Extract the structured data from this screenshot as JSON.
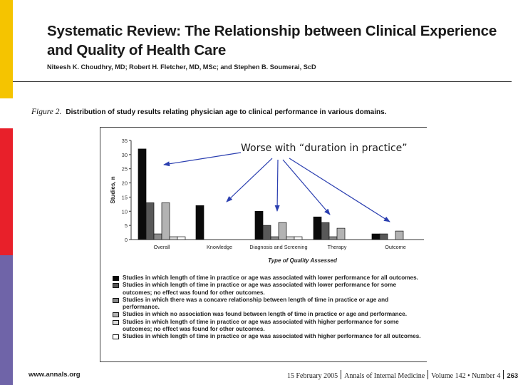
{
  "paper": {
    "title": "Systematic Review: The Relationship between Clinical Experience and Quality of Health Care",
    "authors": "Niteesh K. Choudhry, MD; Robert H. Fletcher, MD, MSc; and Stephen B. Soumerai, ScD"
  },
  "figure": {
    "label": "Figure 2.",
    "caption": "Distribution of study results relating physician age to clinical performance in various domains."
  },
  "annotation": "Worse with “duration in practice”",
  "chart_data": {
    "type": "bar",
    "categories": [
      "Overall",
      "Knowledge",
      "Diagnosis and Screening",
      "Therapy",
      "Outcome"
    ],
    "ylabel": "Studies, n",
    "xlabel": "Type of Quality Assessed",
    "ylim": [
      0,
      35
    ],
    "yticks": [
      0,
      5,
      10,
      15,
      20,
      25,
      30,
      35
    ],
    "series": [
      {
        "name": "Studies in which length of time in practice or age was associated with lower performance for all outcomes.",
        "values": [
          32,
          12,
          10,
          8,
          2
        ],
        "color": "#0a0a0a"
      },
      {
        "name": "Studies in which length of time in practice or age was associated with lower performance for some outcomes; no effect was found for other outcomes.",
        "values": [
          13,
          0,
          5,
          6,
          2
        ],
        "color": "#585858"
      },
      {
        "name": "Studies in which there was a concave relationship between length of time in practice or age and performance.",
        "values": [
          2,
          0,
          1,
          1,
          0
        ],
        "color": "#8a8a8a"
      },
      {
        "name": "Studies in which no association was found between length of time in practice or age and performance.",
        "values": [
          13,
          0,
          6,
          4,
          3
        ],
        "color": "#b3b3b3"
      },
      {
        "name": "Studies in which length of time in practice or age was associated with higher performance for some outcomes; no effect was found for other outcomes.",
        "values": [
          1,
          0,
          1,
          0,
          0
        ],
        "color": "#d8d8d8"
      },
      {
        "name": "Studies in which length of time in practice or age was associated with higher performance for all outcomes.",
        "values": [
          1,
          0,
          1,
          0,
          0
        ],
        "color": "#ffffff"
      }
    ],
    "legend_position": "bottom"
  },
  "footer": {
    "website": "www.annals.org",
    "date": "15 February 2005",
    "journal": "Annals of Internal Medicine",
    "volume": "Volume 142 • Number 4",
    "page": "263"
  }
}
